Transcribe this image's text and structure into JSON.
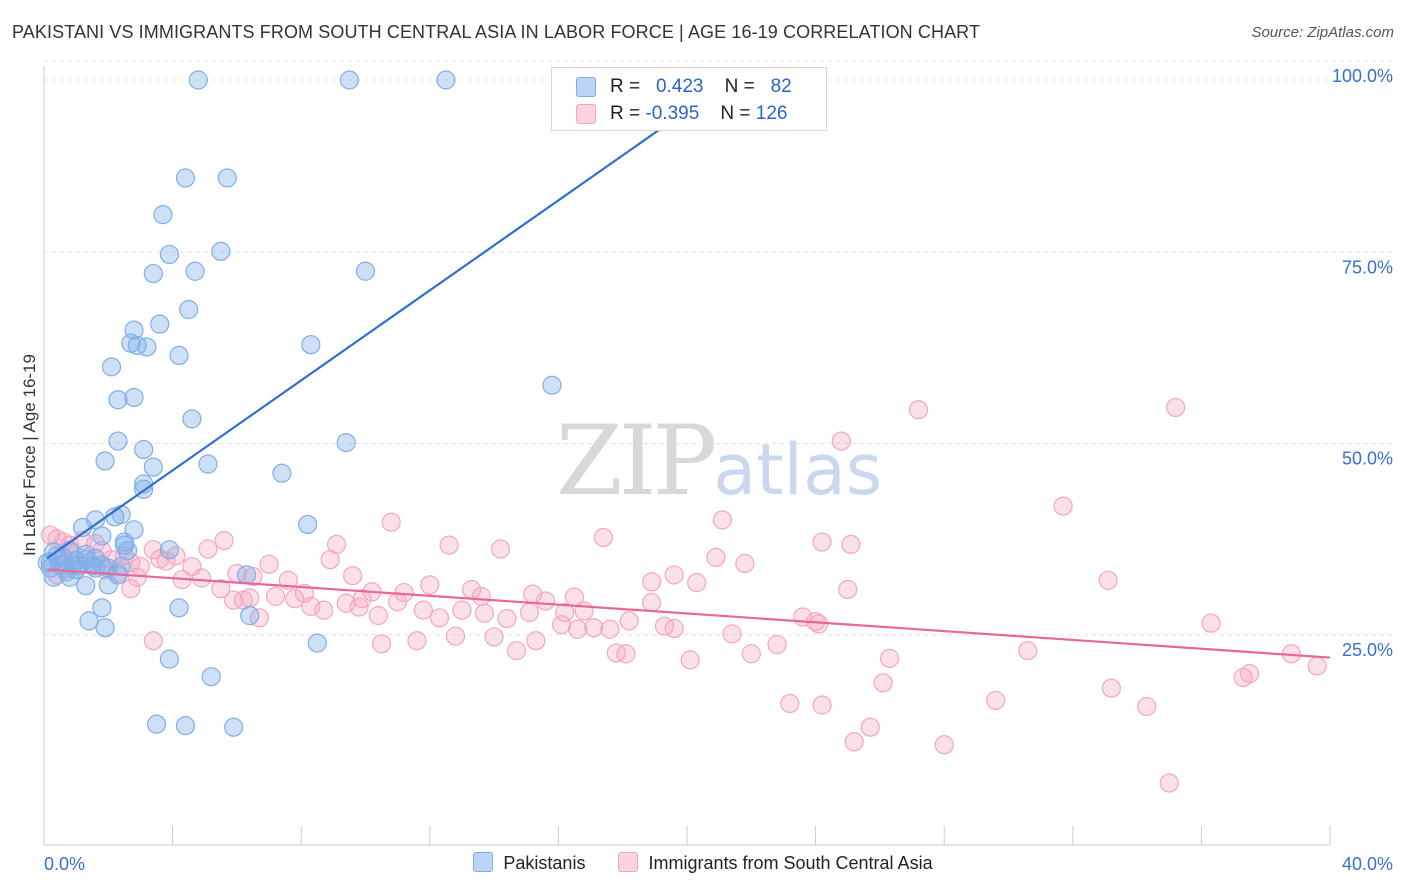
{
  "title": "PAKISTANI VS IMMIGRANTS FROM SOUTH CENTRAL ASIA IN LABOR FORCE | AGE 16-19 CORRELATION CHART",
  "source": "Source: ZipAtlas.com",
  "watermark": {
    "zip": "ZIP",
    "atlas": "atlas"
  },
  "colors": {
    "blue": "#7faee8",
    "blue_line": "#2f6fcf",
    "pink": "#f4a6c0",
    "pink_line": "#e8679a",
    "tick": "#3a6fcf"
  },
  "legend": {
    "rows": [
      {
        "r_label": "R =",
        "r_value": "0.423",
        "n_label": "N =",
        "n_value": "82"
      },
      {
        "r_label": "R =",
        "r_value": "-0.395",
        "n_label": "N =",
        "n_value": "126"
      }
    ]
  },
  "bottom_legend": [
    "Pakistanis",
    "Immigrants from South Central Asia"
  ],
  "chart_data": {
    "type": "scatter",
    "title": "PAKISTANI VS IMMIGRANTS FROM SOUTH CENTRAL ASIA IN LABOR FORCE | AGE 16-19 CORRELATION CHART",
    "xlabel": "",
    "ylabel": "In Labor Force | Age 16-19",
    "xlim": [
      0,
      40
    ],
    "ylim": [
      0,
      100
    ],
    "x_tick_labels": [
      "0.0%",
      "40.0%"
    ],
    "y_ticks": [
      25,
      50,
      75,
      100
    ],
    "y_tick_labels": [
      "25.0%",
      "50.0%",
      "75.0%",
      "100.0%"
    ],
    "grid": true,
    "series": [
      {
        "name": "Pakistanis",
        "color": "#7faee8",
        "trend": {
          "x": [
            0.1,
            20.5
          ],
          "y": [
            37.5,
            97.5
          ]
        },
        "points": [
          [
            4.8,
            100.0
          ],
          [
            9.5,
            100.0
          ],
          [
            12.5,
            100.0
          ],
          [
            4.4,
            87.2
          ],
          [
            5.7,
            87.2
          ],
          [
            3.7,
            82.4
          ],
          [
            3.9,
            77.2
          ],
          [
            5.5,
            77.6
          ],
          [
            3.4,
            74.7
          ],
          [
            4.7,
            75.0
          ],
          [
            10.0,
            75.0
          ],
          [
            4.5,
            70.0
          ],
          [
            3.6,
            68.1
          ],
          [
            2.8,
            67.3
          ],
          [
            2.7,
            65.6
          ],
          [
            2.9,
            65.3
          ],
          [
            3.2,
            65.1
          ],
          [
            8.3,
            65.4
          ],
          [
            4.2,
            64.0
          ],
          [
            2.1,
            62.5
          ],
          [
            15.8,
            60.1
          ],
          [
            2.3,
            58.2
          ],
          [
            2.8,
            58.5
          ],
          [
            4.6,
            55.7
          ],
          [
            2.3,
            52.8
          ],
          [
            9.4,
            52.6
          ],
          [
            3.1,
            51.7
          ],
          [
            1.9,
            50.2
          ],
          [
            5.1,
            49.8
          ],
          [
            3.4,
            49.4
          ],
          [
            7.4,
            48.6
          ],
          [
            3.1,
            47.2
          ],
          [
            3.1,
            46.5
          ],
          [
            1.6,
            42.5
          ],
          [
            2.4,
            43.2
          ],
          [
            2.2,
            42.9
          ],
          [
            1.2,
            41.5
          ],
          [
            2.8,
            41.2
          ],
          [
            8.2,
            41.9
          ],
          [
            1.8,
            40.4
          ],
          [
            2.5,
            39.6
          ],
          [
            2.5,
            39.2
          ],
          [
            3.9,
            38.6
          ],
          [
            2.6,
            38.5
          ],
          [
            0.3,
            38.3
          ],
          [
            0.8,
            38.5
          ],
          [
            1.3,
            38.0
          ],
          [
            0.4,
            37.8
          ],
          [
            0.6,
            37.6
          ],
          [
            1.0,
            37.2
          ],
          [
            1.3,
            37.3
          ],
          [
            0.2,
            37.0
          ],
          [
            0.5,
            36.6
          ],
          [
            0.9,
            36.6
          ],
          [
            1.1,
            36.5
          ],
          [
            1.5,
            36.5
          ],
          [
            1.8,
            36.6
          ],
          [
            2.4,
            36.4
          ],
          [
            0.1,
            36.9
          ],
          [
            0.2,
            36.2
          ],
          [
            1.6,
            36.2
          ],
          [
            0.7,
            35.7
          ],
          [
            2.0,
            36.2
          ],
          [
            0.3,
            35.0
          ],
          [
            0.8,
            35.0
          ],
          [
            2.3,
            35.3
          ],
          [
            6.3,
            35.3
          ],
          [
            1.3,
            33.9
          ],
          [
            2.0,
            34.0
          ],
          [
            1.8,
            31.0
          ],
          [
            4.2,
            31.0
          ],
          [
            6.4,
            30.0
          ],
          [
            1.4,
            29.3
          ],
          [
            1.9,
            28.4
          ],
          [
            8.5,
            26.4
          ],
          [
            3.9,
            24.3
          ],
          [
            5.2,
            22.0
          ],
          [
            3.5,
            15.8
          ],
          [
            4.4,
            15.6
          ],
          [
            5.9,
            15.4
          ],
          [
            1.0,
            36.0
          ],
          [
            1.6,
            37.5
          ]
        ]
      },
      {
        "name": "Immigrants from South Central Asia",
        "color": "#f4a6c0",
        "trend": {
          "x": [
            0.1,
            40.0
          ],
          "y": [
            36.0,
            24.5
          ]
        },
        "points": [
          [
            0.2,
            40.5
          ],
          [
            0.4,
            40.0
          ],
          [
            0.6,
            39.6
          ],
          [
            0.8,
            39.2
          ],
          [
            1.2,
            39.8
          ],
          [
            1.6,
            39.4
          ],
          [
            0.9,
            38.2
          ],
          [
            1.8,
            38.5
          ],
          [
            2.5,
            37.8
          ],
          [
            0.5,
            37.5
          ],
          [
            1.4,
            37.0
          ],
          [
            2.1,
            37.3
          ],
          [
            2.7,
            36.9
          ],
          [
            0.7,
            36.1
          ],
          [
            1.9,
            36.0
          ],
          [
            3.0,
            36.4
          ],
          [
            2.3,
            35.6
          ],
          [
            2.9,
            35.0
          ],
          [
            0.4,
            35.3
          ],
          [
            3.4,
            38.6
          ],
          [
            4.1,
            37.8
          ],
          [
            4.6,
            36.4
          ],
          [
            5.1,
            38.7
          ],
          [
            5.6,
            39.8
          ],
          [
            3.8,
            37.1
          ],
          [
            4.3,
            34.7
          ],
          [
            4.9,
            34.9
          ],
          [
            5.5,
            33.5
          ],
          [
            6.0,
            35.5
          ],
          [
            6.5,
            35.1
          ],
          [
            7.0,
            36.7
          ],
          [
            7.6,
            34.6
          ],
          [
            8.1,
            32.9
          ],
          [
            8.9,
            37.3
          ],
          [
            9.1,
            39.3
          ],
          [
            9.6,
            35.2
          ],
          [
            10.2,
            33.1
          ],
          [
            10.8,
            42.2
          ],
          [
            11.2,
            33.0
          ],
          [
            12.0,
            34.0
          ],
          [
            12.6,
            39.2
          ],
          [
            13.3,
            33.4
          ],
          [
            14.2,
            38.7
          ],
          [
            15.2,
            32.8
          ],
          [
            16.5,
            32.4
          ],
          [
            17.4,
            40.2
          ],
          [
            18.9,
            34.4
          ],
          [
            19.6,
            35.3
          ],
          [
            20.9,
            37.6
          ],
          [
            21.1,
            42.5
          ],
          [
            21.8,
            36.8
          ],
          [
            24.0,
            29.2
          ],
          [
            24.2,
            39.6
          ],
          [
            25.0,
            33.4
          ],
          [
            25.1,
            39.3
          ],
          [
            24.8,
            52.8
          ],
          [
            27.2,
            56.9
          ],
          [
            35.2,
            57.2
          ],
          [
            31.7,
            44.3
          ],
          [
            33.1,
            34.6
          ],
          [
            2.7,
            33.5
          ],
          [
            3.4,
            26.7
          ],
          [
            5.9,
            32.0
          ],
          [
            6.4,
            32.3
          ],
          [
            6.7,
            29.7
          ],
          [
            7.2,
            32.5
          ],
          [
            7.8,
            32.2
          ],
          [
            8.3,
            31.2
          ],
          [
            8.7,
            30.7
          ],
          [
            9.4,
            31.6
          ],
          [
            9.9,
            32.2
          ],
          [
            10.4,
            30.0
          ],
          [
            11.0,
            31.8
          ],
          [
            11.8,
            30.7
          ],
          [
            12.3,
            29.7
          ],
          [
            13.0,
            30.7
          ],
          [
            13.7,
            30.3
          ],
          [
            14.4,
            29.6
          ],
          [
            15.1,
            30.4
          ],
          [
            15.6,
            31.9
          ],
          [
            16.2,
            30.4
          ],
          [
            16.8,
            30.6
          ],
          [
            17.6,
            28.2
          ],
          [
            18.2,
            29.3
          ],
          [
            18.9,
            31.7
          ],
          [
            19.6,
            28.3
          ],
          [
            10.5,
            26.3
          ],
          [
            11.6,
            26.7
          ],
          [
            12.8,
            27.3
          ],
          [
            14.0,
            27.2
          ],
          [
            14.7,
            25.4
          ],
          [
            15.3,
            26.7
          ],
          [
            16.1,
            28.8
          ],
          [
            16.6,
            28.2
          ],
          [
            17.1,
            28.4
          ],
          [
            17.8,
            25.1
          ],
          [
            18.1,
            25.0
          ],
          [
            19.3,
            28.6
          ],
          [
            20.1,
            24.2
          ],
          [
            21.4,
            27.6
          ],
          [
            22.0,
            25.0
          ],
          [
            22.8,
            26.2
          ],
          [
            23.6,
            29.8
          ],
          [
            24.1,
            28.9
          ],
          [
            26.3,
            24.4
          ],
          [
            23.2,
            18.5
          ],
          [
            24.2,
            18.3
          ],
          [
            25.2,
            13.5
          ],
          [
            25.7,
            15.4
          ],
          [
            26.1,
            21.2
          ],
          [
            28.0,
            13.1
          ],
          [
            29.6,
            18.9
          ],
          [
            30.6,
            25.4
          ],
          [
            33.2,
            20.5
          ],
          [
            34.3,
            18.1
          ],
          [
            35.0,
            8.1
          ],
          [
            36.3,
            29.0
          ],
          [
            37.5,
            22.4
          ],
          [
            37.3,
            21.9
          ],
          [
            38.8,
            25.0
          ],
          [
            39.6,
            23.4
          ],
          [
            3.6,
            37.4
          ],
          [
            6.2,
            32.0
          ],
          [
            13.6,
            32.5
          ],
          [
            20.3,
            34.3
          ],
          [
            9.8,
            31.1
          ]
        ]
      }
    ]
  }
}
